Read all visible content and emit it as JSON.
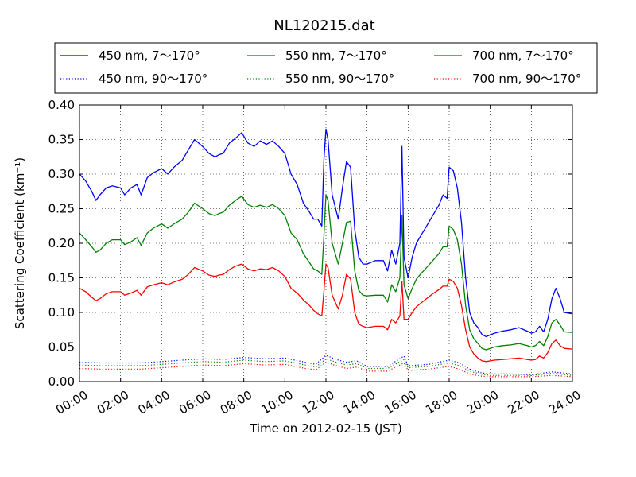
{
  "chart_data": {
    "type": "line",
    "title": "NL120215.dat",
    "xlabel": "Time on 2012-02-15 (JST)",
    "ylabel": "Scattering Coefficient (km⁻¹)",
    "x_unit": "hours",
    "xlim": [
      0,
      24
    ],
    "ylim": [
      0.0,
      0.4
    ],
    "grid": true,
    "legend_position": "top",
    "x_ticks": [
      0,
      2,
      4,
      6,
      8,
      10,
      12,
      14,
      16,
      18,
      20,
      22,
      24
    ],
    "x_tick_labels": [
      "00:00",
      "02:00",
      "04:00",
      "06:00",
      "08:00",
      "10:00",
      "12:00",
      "14:00",
      "16:00",
      "18:00",
      "20:00",
      "22:00",
      "24:00"
    ],
    "y_ticks": [
      0,
      0.05,
      0.1,
      0.15,
      0.2,
      0.25,
      0.3,
      0.35,
      0.4
    ],
    "y_tick_labels": [
      "0.00",
      "0.05",
      "0.10",
      "0.15",
      "0.20",
      "0.25",
      "0.30",
      "0.35",
      "0.40"
    ],
    "series": [
      {
        "name": "450 nm, 7～170°",
        "color": "#0000ff",
        "style": "solid",
        "x": [
          0,
          0.3,
          0.6,
          0.8,
          1.0,
          1.3,
          1.6,
          2.0,
          2.2,
          2.5,
          2.8,
          3.0,
          3.3,
          3.6,
          4.0,
          4.3,
          4.6,
          5.0,
          5.3,
          5.6,
          6.0,
          6.3,
          6.6,
          6.8,
          7.0,
          7.3,
          7.6,
          7.9,
          8.2,
          8.5,
          8.8,
          9.1,
          9.4,
          9.7,
          10.0,
          10.3,
          10.6,
          10.9,
          11.2,
          11.4,
          11.6,
          11.8,
          11.9,
          12.0,
          12.1,
          12.3,
          12.6,
          12.8,
          13.0,
          13.2,
          13.4,
          13.6,
          13.8,
          14.0,
          14.4,
          14.8,
          15.0,
          15.2,
          15.4,
          15.6,
          15.7,
          15.8,
          16.0,
          16.2,
          16.4,
          16.6,
          16.9,
          17.2,
          17.5,
          17.7,
          17.9,
          18.0,
          18.2,
          18.4,
          18.6,
          18.8,
          19.0,
          19.2,
          19.4,
          19.6,
          19.8,
          20.2,
          20.6,
          21.0,
          21.4,
          21.8,
          22.0,
          22.2,
          22.4,
          22.6,
          22.8,
          23.0,
          23.2,
          23.4,
          23.6,
          24.0
        ],
        "y": [
          0.3,
          0.29,
          0.275,
          0.262,
          0.27,
          0.28,
          0.283,
          0.28,
          0.27,
          0.28,
          0.285,
          0.27,
          0.295,
          0.302,
          0.308,
          0.3,
          0.31,
          0.32,
          0.335,
          0.35,
          0.34,
          0.33,
          0.325,
          0.328,
          0.33,
          0.345,
          0.352,
          0.36,
          0.345,
          0.34,
          0.348,
          0.343,
          0.348,
          0.34,
          0.33,
          0.3,
          0.285,
          0.258,
          0.245,
          0.235,
          0.235,
          0.225,
          0.32,
          0.365,
          0.35,
          0.27,
          0.235,
          0.28,
          0.318,
          0.31,
          0.22,
          0.18,
          0.17,
          0.17,
          0.175,
          0.175,
          0.16,
          0.19,
          0.17,
          0.2,
          0.34,
          0.18,
          0.15,
          0.18,
          0.2,
          0.21,
          0.225,
          0.24,
          0.255,
          0.27,
          0.265,
          0.31,
          0.305,
          0.28,
          0.23,
          0.15,
          0.1,
          0.085,
          0.078,
          0.068,
          0.065,
          0.07,
          0.073,
          0.075,
          0.078,
          0.073,
          0.07,
          0.072,
          0.08,
          0.072,
          0.09,
          0.12,
          0.135,
          0.12,
          0.1,
          0.098
        ]
      },
      {
        "name": "550 nm, 7～170°",
        "color": "#008000",
        "style": "solid",
        "x": [
          0,
          0.3,
          0.6,
          0.8,
          1.0,
          1.3,
          1.6,
          2.0,
          2.2,
          2.5,
          2.8,
          3.0,
          3.3,
          3.6,
          4.0,
          4.3,
          4.6,
          5.0,
          5.3,
          5.6,
          6.0,
          6.3,
          6.6,
          6.8,
          7.0,
          7.3,
          7.6,
          7.9,
          8.2,
          8.5,
          8.8,
          9.1,
          9.4,
          9.7,
          10.0,
          10.3,
          10.6,
          10.9,
          11.2,
          11.4,
          11.6,
          11.8,
          11.9,
          12.0,
          12.1,
          12.3,
          12.6,
          12.8,
          13.0,
          13.2,
          13.4,
          13.6,
          13.8,
          14.0,
          14.4,
          14.8,
          15.0,
          15.2,
          15.4,
          15.6,
          15.7,
          15.8,
          16.0,
          16.2,
          16.4,
          16.6,
          16.9,
          17.2,
          17.5,
          17.7,
          17.9,
          18.0,
          18.2,
          18.4,
          18.6,
          18.8,
          19.0,
          19.2,
          19.4,
          19.6,
          19.8,
          20.2,
          20.6,
          21.0,
          21.4,
          21.8,
          22.0,
          22.2,
          22.4,
          22.6,
          22.8,
          23.0,
          23.2,
          23.4,
          23.6,
          24.0
        ],
        "y": [
          0.215,
          0.205,
          0.195,
          0.187,
          0.19,
          0.2,
          0.205,
          0.205,
          0.198,
          0.202,
          0.208,
          0.197,
          0.215,
          0.222,
          0.228,
          0.222,
          0.228,
          0.235,
          0.245,
          0.258,
          0.25,
          0.243,
          0.24,
          0.243,
          0.245,
          0.255,
          0.262,
          0.268,
          0.256,
          0.252,
          0.255,
          0.252,
          0.256,
          0.25,
          0.24,
          0.215,
          0.205,
          0.185,
          0.172,
          0.163,
          0.16,
          0.155,
          0.21,
          0.27,
          0.262,
          0.2,
          0.17,
          0.2,
          0.23,
          0.232,
          0.16,
          0.132,
          0.125,
          0.124,
          0.125,
          0.125,
          0.115,
          0.14,
          0.13,
          0.15,
          0.24,
          0.14,
          0.12,
          0.135,
          0.148,
          0.155,
          0.165,
          0.175,
          0.185,
          0.195,
          0.195,
          0.225,
          0.22,
          0.205,
          0.17,
          0.11,
          0.075,
          0.062,
          0.055,
          0.048,
          0.046,
          0.05,
          0.052,
          0.053,
          0.055,
          0.052,
          0.05,
          0.052,
          0.058,
          0.052,
          0.065,
          0.085,
          0.09,
          0.082,
          0.072,
          0.071
        ]
      },
      {
        "name": "700 nm, 7～170°",
        "color": "#ff0000",
        "style": "solid",
        "x": [
          0,
          0.3,
          0.6,
          0.8,
          1.0,
          1.3,
          1.6,
          2.0,
          2.2,
          2.5,
          2.8,
          3.0,
          3.3,
          3.6,
          4.0,
          4.3,
          4.6,
          5.0,
          5.3,
          5.6,
          6.0,
          6.3,
          6.6,
          6.8,
          7.0,
          7.3,
          7.6,
          7.9,
          8.2,
          8.5,
          8.8,
          9.1,
          9.4,
          9.7,
          10.0,
          10.3,
          10.6,
          10.9,
          11.2,
          11.4,
          11.6,
          11.8,
          11.9,
          12.0,
          12.1,
          12.3,
          12.6,
          12.8,
          13.0,
          13.2,
          13.4,
          13.6,
          13.8,
          14.0,
          14.4,
          14.8,
          15.0,
          15.2,
          15.4,
          15.6,
          15.7,
          15.8,
          16.0,
          16.2,
          16.4,
          16.6,
          16.9,
          17.2,
          17.5,
          17.7,
          17.9,
          18.0,
          18.2,
          18.4,
          18.6,
          18.8,
          19.0,
          19.2,
          19.4,
          19.6,
          19.8,
          20.2,
          20.6,
          21.0,
          21.4,
          21.8,
          22.0,
          22.2,
          22.4,
          22.6,
          22.8,
          23.0,
          23.2,
          23.4,
          23.6,
          24.0
        ],
        "y": [
          0.135,
          0.13,
          0.122,
          0.117,
          0.12,
          0.127,
          0.13,
          0.13,
          0.125,
          0.128,
          0.132,
          0.125,
          0.137,
          0.14,
          0.143,
          0.14,
          0.144,
          0.148,
          0.155,
          0.165,
          0.16,
          0.154,
          0.152,
          0.154,
          0.155,
          0.162,
          0.167,
          0.17,
          0.163,
          0.16,
          0.163,
          0.162,
          0.165,
          0.16,
          0.152,
          0.135,
          0.128,
          0.118,
          0.11,
          0.103,
          0.098,
          0.095,
          0.13,
          0.17,
          0.165,
          0.125,
          0.105,
          0.125,
          0.155,
          0.148,
          0.1,
          0.083,
          0.08,
          0.078,
          0.08,
          0.08,
          0.075,
          0.09,
          0.085,
          0.095,
          0.145,
          0.09,
          0.09,
          0.1,
          0.108,
          0.113,
          0.12,
          0.127,
          0.133,
          0.138,
          0.138,
          0.148,
          0.145,
          0.135,
          0.11,
          0.075,
          0.05,
          0.04,
          0.034,
          0.03,
          0.029,
          0.031,
          0.032,
          0.033,
          0.034,
          0.032,
          0.031,
          0.032,
          0.037,
          0.034,
          0.042,
          0.055,
          0.06,
          0.052,
          0.048,
          0.047
        ]
      },
      {
        "name": "450 nm, 90～170°",
        "color": "#0000ff",
        "style": "dotted",
        "x": [
          0,
          1,
          2,
          3,
          4,
          5,
          6,
          7,
          8,
          9,
          10,
          11,
          11.5,
          12,
          12.5,
          13,
          13.5,
          14,
          15,
          15.8,
          16,
          17,
          18,
          18.5,
          19,
          19.5,
          20,
          21,
          22,
          23,
          24
        ],
        "y": [
          0.028,
          0.027,
          0.027,
          0.027,
          0.029,
          0.031,
          0.033,
          0.032,
          0.035,
          0.033,
          0.034,
          0.028,
          0.025,
          0.038,
          0.032,
          0.028,
          0.03,
          0.022,
          0.022,
          0.037,
          0.023,
          0.025,
          0.031,
          0.027,
          0.018,
          0.013,
          0.011,
          0.011,
          0.01,
          0.014,
          0.011
        ]
      },
      {
        "name": "550 nm, 90～170°",
        "color": "#008000",
        "style": "dotted",
        "x": [
          0,
          1,
          2,
          3,
          4,
          5,
          6,
          7,
          8,
          9,
          10,
          11,
          11.5,
          12,
          12.5,
          13,
          13.5,
          14,
          15,
          15.8,
          16,
          17,
          18,
          18.5,
          19,
          19.5,
          20,
          21,
          22,
          23,
          24
        ],
        "y": [
          0.024,
          0.023,
          0.023,
          0.023,
          0.025,
          0.027,
          0.029,
          0.028,
          0.031,
          0.029,
          0.03,
          0.024,
          0.021,
          0.033,
          0.028,
          0.024,
          0.026,
          0.019,
          0.019,
          0.032,
          0.02,
          0.022,
          0.027,
          0.023,
          0.015,
          0.011,
          0.009,
          0.009,
          0.009,
          0.012,
          0.009
        ]
      },
      {
        "name": "700 nm, 90～170°",
        "color": "#ff0000",
        "style": "dotted",
        "x": [
          0,
          1,
          2,
          3,
          4,
          5,
          6,
          7,
          8,
          9,
          10,
          11,
          11.5,
          12,
          12.5,
          13,
          13.5,
          14,
          15,
          15.8,
          16,
          17,
          18,
          18.5,
          19,
          19.5,
          20,
          21,
          22,
          23,
          24
        ],
        "y": [
          0.019,
          0.018,
          0.018,
          0.018,
          0.02,
          0.022,
          0.024,
          0.023,
          0.026,
          0.024,
          0.025,
          0.019,
          0.017,
          0.028,
          0.023,
          0.019,
          0.021,
          0.015,
          0.015,
          0.027,
          0.016,
          0.018,
          0.022,
          0.018,
          0.011,
          0.008,
          0.007,
          0.007,
          0.007,
          0.009,
          0.007
        ]
      }
    ]
  }
}
